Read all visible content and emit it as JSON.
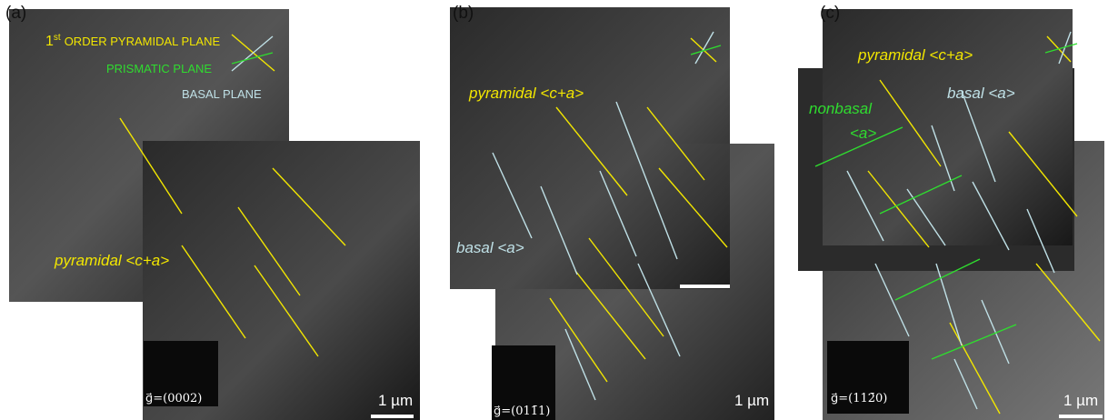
{
  "panels": [
    {
      "label": "(a)",
      "annotations": {
        "plane_ordinal": "1",
        "plane_ordinal_suffix": "st",
        "pyramidal_plane": "ORDER PYRAMIDAL PLANE",
        "prismatic_plane": "PRISMATIC PLANE",
        "basal_plane": "BASAL PLANE",
        "pyramidal_slip": "pyramidal <c+a>"
      },
      "g_vector": "g⃗=(0002)",
      "scale_bar": "1 µm"
    },
    {
      "label": "(b)",
      "annotations": {
        "pyramidal_slip": "pyramidal <c+a>",
        "basal_slip": "basal <a>"
      },
      "g_vector": "g⃗=(011̄1)",
      "scale_bar": "1 µm"
    },
    {
      "label": "(c)",
      "annotations": {
        "pyramidal_slip": "pyramidal <c+a>",
        "basal_slip": "basal <a>",
        "nonbasal_slip_line1": "nonbasal",
        "nonbasal_slip_line2": "<a>"
      },
      "g_vector": "g⃗=(112̄0)",
      "scale_bar": "1 µm"
    }
  ]
}
